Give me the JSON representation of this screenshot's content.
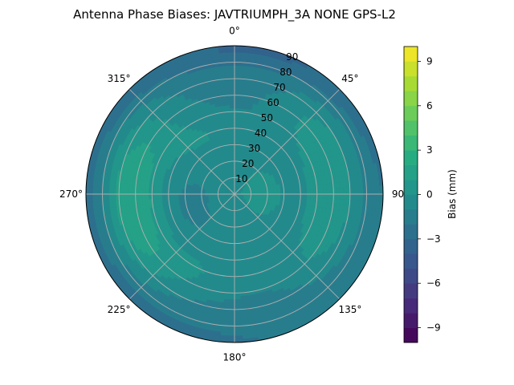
{
  "chart_data": {
    "type": "polar_contour",
    "title": "Antenna Phase Biases: JAVTRIUMPH_3A   NONE GPS-L2",
    "theta_direction": "clockwise",
    "theta_zero": "top",
    "angle_tick_labels": [
      {
        "deg": 0,
        "label": "0°"
      },
      {
        "deg": 45,
        "label": "45°"
      },
      {
        "deg": 90,
        "label": "90"
      },
      {
        "deg": 135,
        "label": "135°"
      },
      {
        "deg": 180,
        "label": "180°"
      },
      {
        "deg": 225,
        "label": "225°"
      },
      {
        "deg": 270,
        "label": "270°"
      },
      {
        "deg": 315,
        "label": "315°"
      }
    ],
    "radial_ticks": [
      10,
      20,
      30,
      40,
      50,
      60,
      70,
      80,
      90
    ],
    "rlim": [
      0,
      90
    ],
    "colorbar": {
      "label": "Bias (mm)",
      "range": [
        -10,
        10
      ],
      "levels": 20,
      "ticks": [
        {
          "value": 9,
          "label": "9"
        },
        {
          "value": 6,
          "label": "6"
        },
        {
          "value": 3,
          "label": "3"
        },
        {
          "value": 0,
          "label": "0"
        },
        {
          "value": -3,
          "label": "−3"
        },
        {
          "value": -6,
          "label": "−6"
        },
        {
          "value": -9,
          "label": "−9"
        }
      ]
    },
    "colormap": "viridis",
    "background_bias_mm": -2,
    "field_features": [
      {
        "theta_deg": 290,
        "r": 63,
        "amplitude": 2.6,
        "spread_theta_deg": 28,
        "spread_r": 14
      },
      {
        "theta_deg": 250,
        "r": 62,
        "amplitude": 2.5,
        "spread_theta_deg": 25,
        "spread_r": 13
      },
      {
        "theta_deg": 60,
        "r": 60,
        "amplitude": 2.3,
        "spread_theta_deg": 30,
        "spread_r": 14
      },
      {
        "theta_deg": 115,
        "r": 58,
        "amplitude": 2.0,
        "spread_theta_deg": 28,
        "spread_r": 14
      },
      {
        "theta_deg": 200,
        "r": 50,
        "amplitude": 1.6,
        "spread_theta_deg": 30,
        "spread_r": 14
      },
      {
        "theta_deg": 330,
        "r": 40,
        "amplitude": 1.5,
        "spread_theta_deg": 30,
        "spread_r": 12
      },
      {
        "theta_deg": 0,
        "r": 0,
        "amplitude": 1.3,
        "spread_theta_deg": 360,
        "spread_r": 22
      },
      {
        "theta_deg": 90,
        "r": 20,
        "amplitude": 1.4,
        "spread_theta_deg": 60,
        "spread_r": 14
      },
      {
        "theta_deg": 20,
        "r": 88,
        "amplitude": -1.2,
        "spread_theta_deg": 40,
        "spread_r": 6
      },
      {
        "theta_deg": 270,
        "r": 88,
        "amplitude": -1.0,
        "spread_theta_deg": 40,
        "spread_r": 6
      }
    ]
  }
}
